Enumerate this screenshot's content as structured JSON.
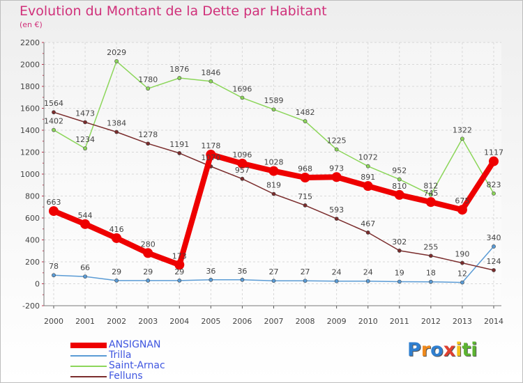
{
  "chart_data": {
    "type": "line",
    "title": "Evolution du Montant de la Dette par Habitant",
    "subtitle": "(en €)",
    "xlabel": "",
    "ylabel": "",
    "x": [
      "2000",
      "2001",
      "2002",
      "2003",
      "2004",
      "2005",
      "2006",
      "2007",
      "2008",
      "2009",
      "2010",
      "2011",
      "2012",
      "2013",
      "2014"
    ],
    "ylim": [
      -200,
      2200
    ],
    "yticks": [
      "-200",
      "0",
      "200",
      "400",
      "600",
      "800",
      "1000",
      "1200",
      "1400",
      "1600",
      "1800",
      "2000",
      "2200"
    ],
    "grid": true,
    "legend_position": "bottom-left",
    "series": [
      {
        "name": "ANSIGNAN",
        "color": "#ee0000",
        "values": [
          663,
          544,
          416,
          280,
          173,
          1178,
          1096,
          1028,
          968,
          973,
          891,
          810,
          745,
          675,
          1117
        ]
      },
      {
        "name": "Trilla",
        "color": "#5a9bd5",
        "values": [
          78,
          66,
          29,
          29,
          29,
          36,
          36,
          27,
          27,
          24,
          24,
          19,
          18,
          12,
          340
        ]
      },
      {
        "name": "Saint-Arnac",
        "color": "#8cd65a",
        "values": [
          1402,
          1234,
          2029,
          1780,
          1876,
          1846,
          1696,
          1589,
          1482,
          1225,
          1072,
          952,
          812,
          1322,
          823
        ]
      },
      {
        "name": "Felluns",
        "color": "#7a2c2c",
        "values": [
          1564,
          1473,
          1384,
          1278,
          1191,
          1070,
          957,
          819,
          715,
          593,
          467,
          302,
          255,
          190,
          124
        ]
      }
    ]
  },
  "logo": {
    "letters": [
      "P",
      "r",
      "o",
      "x",
      "i",
      "t",
      "i"
    ],
    "colors": [
      "#2f7fd0",
      "#f08a1c",
      "#2f7fd0",
      "#e04030",
      "#f4c21a",
      "#5cb431",
      "#5cb431"
    ]
  }
}
